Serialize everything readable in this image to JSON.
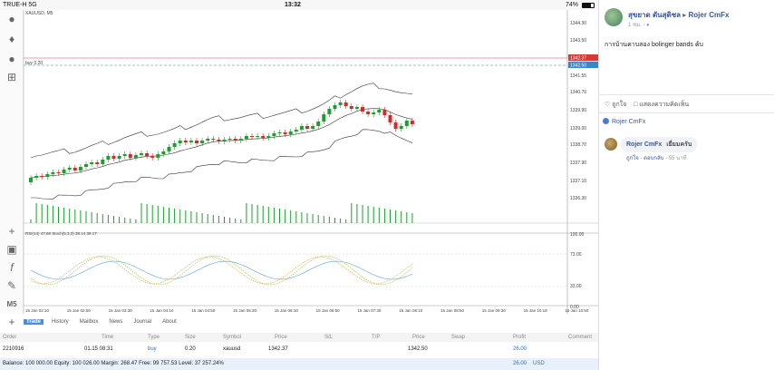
{
  "status_bar": {
    "carrier": "TRUE-H 5G",
    "time": "13:32",
    "battery": "74%",
    "battery_level": 0.74
  },
  "chart": {
    "symbol_label": "XAUUSD, M5",
    "buy_label": "buy 0.20",
    "price_ticks": [
      "1344.30",
      "1343.50",
      "1342.37",
      "1342.50",
      "1341.55",
      "1340.70",
      "1339.90",
      "1339.00",
      "1338.70",
      "1337.90",
      "1337.10",
      "1336.30"
    ],
    "current_price": "1342.37",
    "ask_price": "1342.50",
    "indicator_label": "RSI(14) 47.66 Stoch(5,3,3) 38.14 38.17",
    "indicator_ticks": [
      "100.00",
      "73.00",
      "33.00",
      "0.00"
    ],
    "time_labels": [
      "15 Jan 02:10",
      "15 Jan 02:50",
      "15 Jan 03:30",
      "15 Jan 04:10",
      "15 Jan 04:50",
      "15 Jan 05:30",
      "15 Jan 06:10",
      "15 Jan 06:50",
      "15 Jan 07:30",
      "15 Jan 08:10",
      "15 Jan 08:50",
      "15 Jan 09:30",
      "15 Jan 10:10",
      "15 Jan 10:50"
    ],
    "colors": {
      "bull": "#1f9e2f",
      "bear": "#d42a2a",
      "band": "#333333",
      "rsi": "#5aa0d8",
      "stoch": "#8ec63f",
      "stoch_signal": "#e0a23a"
    }
  },
  "toolbar": {
    "icons": [
      "user-icon",
      "add-user-icon",
      "chat-icon",
      "add-chart-icon",
      "crosshair-icon",
      "indicator-icon",
      "function-icon",
      "draw-icon",
      "period-icon",
      "crosshair-icon"
    ],
    "period_label": "M5"
  },
  "terminal": {
    "tabs": [
      "Trade",
      "History",
      "Mailbox",
      "News",
      "Journal",
      "About"
    ],
    "columns": [
      "Order",
      "Time",
      "Type",
      "Size",
      "Symbol",
      "Price",
      "S/L",
      "T/P",
      "Price",
      "Swap",
      "Profit",
      "Comment"
    ],
    "row": {
      "order": "2210916",
      "time": "01.15 08:31",
      "type": "buy",
      "size": "0.20",
      "symbol": "xauusd",
      "price": "1342.37",
      "sl": "",
      "tp": "",
      "price_now": "1342.50",
      "swap": "",
      "profit": "26.00",
      "comment": ""
    },
    "balance": "Balance: 100 000.00 Equity: 100 026.00 Margin: 268.47 Free: 99 757.53 Level: 37 257.24%",
    "total_profit": "26.00",
    "currency": "USD"
  },
  "facebook": {
    "author": "สุขยาด ตันสุติชล",
    "arrow": "▸",
    "page": "Rojer CmFx",
    "time": "1 ชม. ·",
    "post_text": "การบ้านคาบสอง bolinger bands ค้บ",
    "like_label": "ถูกใจ",
    "comment_label": "แสดงความคิดเห็น",
    "reaction_name": "Rojer CmFx",
    "comment": {
      "author": "Rojer CmFx",
      "text": "เยี่ยมครับ",
      "like": "ถูกใจ",
      "reply": "ตอบกลับ",
      "time": "55 นาที"
    }
  }
}
